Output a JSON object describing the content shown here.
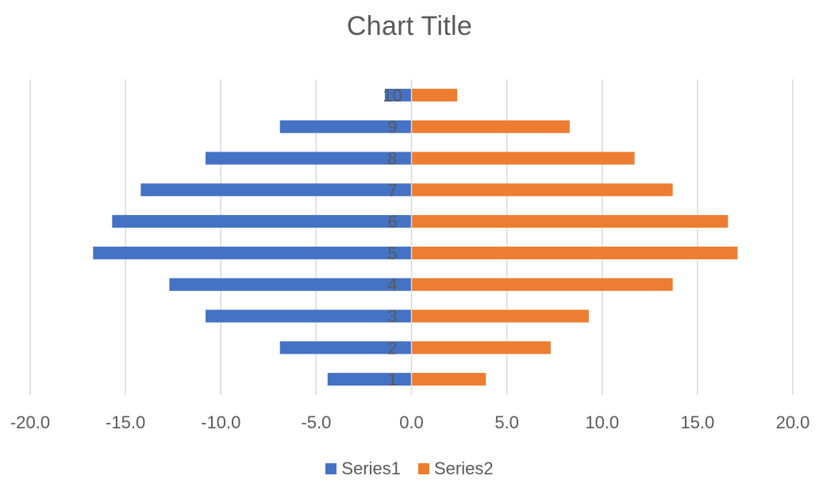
{
  "chart_data": {
    "type": "bar",
    "orientation": "horizontal",
    "title": "Chart Title",
    "categories": [
      "1",
      "2",
      "3",
      "4",
      "5",
      "6",
      "7",
      "8",
      "9",
      "10"
    ],
    "series": [
      {
        "name": "Series1",
        "color": "#4472C4",
        "values": [
          -4.4,
          -6.9,
          -10.8,
          -12.7,
          -16.7,
          -15.7,
          -14.2,
          -10.8,
          -6.9,
          -1.4
        ]
      },
      {
        "name": "Series2",
        "color": "#ED7D31",
        "values": [
          3.9,
          7.3,
          9.3,
          13.7,
          17.1,
          16.6,
          13.7,
          11.7,
          8.3,
          2.4
        ]
      }
    ],
    "xlim": [
      -20,
      20
    ],
    "xticks": [
      "-20.0",
      "-15.0",
      "-10.0",
      "-5.0",
      "0.0",
      "5.0",
      "10.0",
      "15.0",
      "20.0"
    ],
    "xlabel": "",
    "ylabel": "",
    "grid": "vertical",
    "legend_position": "bottom"
  }
}
